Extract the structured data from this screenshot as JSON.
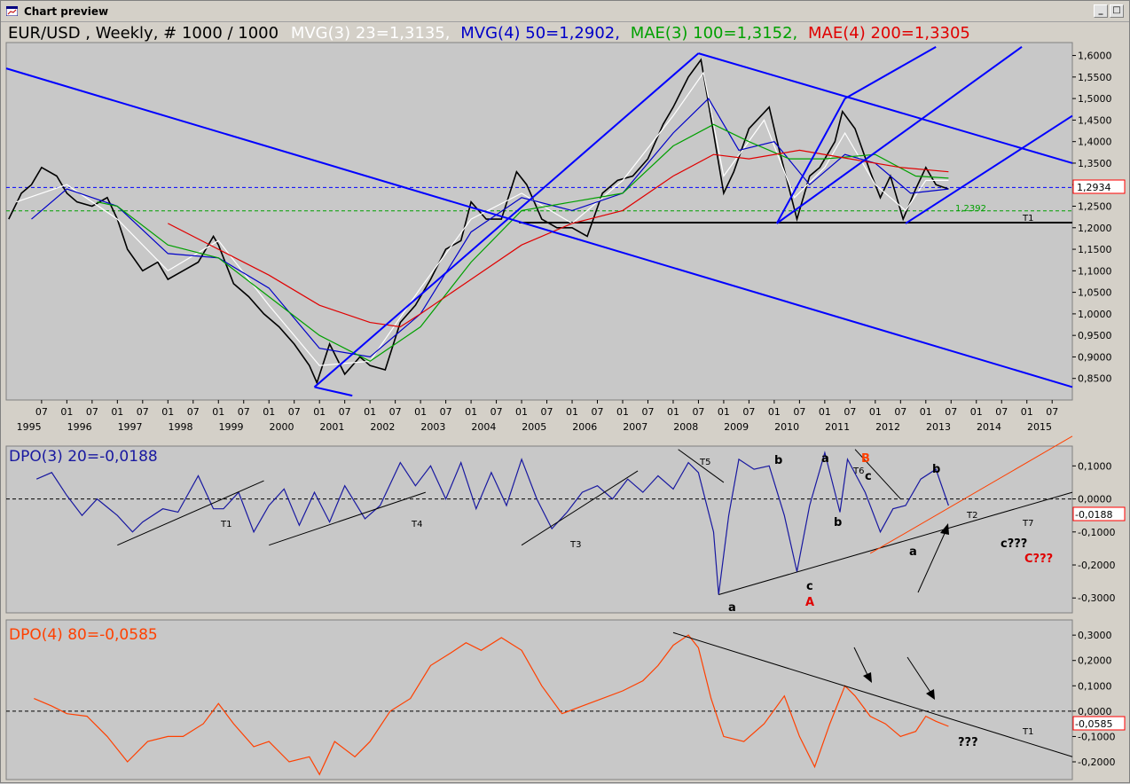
{
  "window": {
    "title": "Chart preview",
    "icon": "chart-icon",
    "min_label": "_",
    "max_label": "□"
  },
  "colors": {
    "background": "#c8c8c8",
    "price": "#000000",
    "mvg3": "#ffffff",
    "mvg4": "#0000c8",
    "mae3": "#00a000",
    "mae4": "#e00000",
    "dpo3": "#1818a0",
    "dpo4": "#ff4000",
    "trend": "#0000ff"
  },
  "header": {
    "symbol": "EUR/USD , Weekly, # 1000 / 1000",
    "mvg3": "MVG(3) 23=1,3135,",
    "mvg4": "MVG(4) 50=1,2902,",
    "mae3": "MAE(3) 100=1,3152,",
    "mae4": "MAE(4) 200=1,3305"
  },
  "price_panel": {
    "last_value_label": "1,2934",
    "level_label": "1,2392",
    "support_label": "T1"
  },
  "dpo3_panel": {
    "title": "DPO(3) 20=-0,0188",
    "last_value_label": "-0,0188",
    "annotations": {
      "T1": "T1",
      "T2": "T2",
      "T3": "T3",
      "T4": "T4",
      "T5": "T5",
      "T6": "T6",
      "T7": "T7",
      "a1": "a",
      "b1": "b",
      "a2": "a",
      "c1": "c",
      "A": "A",
      "b2": "b",
      "B": "B",
      "c2": "c",
      "a3": "a",
      "b3": "b",
      "c3": "c???",
      "C": "C???"
    }
  },
  "dpo4_panel": {
    "title": "DPO(4) 80=-0,0585",
    "last_value_label": "-0,0585",
    "annotations": {
      "T1": "T1",
      "q": "???"
    }
  },
  "chart_data": [
    {
      "type": "line",
      "title": "EUR/USD , Weekly, # 1000 / 1000",
      "x_axis": {
        "month_ticks": [
          "07",
          "01",
          "07",
          "01",
          "07",
          "01",
          "07",
          "01",
          "07",
          "01",
          "07",
          "01",
          "07",
          "01",
          "07",
          "01",
          "07",
          "01",
          "07",
          "01",
          "07",
          "01",
          "07",
          "01",
          "07",
          "01",
          "07",
          "01",
          "07",
          "01",
          "07",
          "01",
          "07",
          "01",
          "07",
          "01",
          "07",
          "01",
          "07",
          "01",
          "07"
        ],
        "years": [
          "1995",
          "1996",
          "1997",
          "1998",
          "1999",
          "2000",
          "2001",
          "2002",
          "2003",
          "2004",
          "2005",
          "2006",
          "2007",
          "2008",
          "2009",
          "2010",
          "2011",
          "2012",
          "2013",
          "2014",
          "2015"
        ],
        "range": [
          1994.8,
          2015.9
        ]
      },
      "y_axis": {
        "ticks": [
          "1,6000",
          "1,5500",
          "1,5000",
          "1,4500",
          "1,4000",
          "1,3500",
          "1,3000",
          "1,2500",
          "1,2000",
          "1,1500",
          "1,1000",
          "1,0500",
          "1,0000",
          "0,9500",
          "0,9000",
          "0,8500"
        ],
        "range": [
          0.8,
          1.63
        ]
      },
      "series": [
        {
          "name": "EUR/USD",
          "x": [
            1994.85,
            1995.1,
            1995.3,
            1995.5,
            1995.8,
            1996.0,
            1996.2,
            1996.5,
            1996.8,
            1997.0,
            1997.2,
            1997.5,
            1997.8,
            1998.0,
            1998.3,
            1998.6,
            1998.9,
            1999.0,
            1999.3,
            1999.6,
            1999.9,
            2000.2,
            2000.5,
            2000.8,
            2000.95,
            2001.2,
            2001.5,
            2001.8,
            2002.0,
            2002.3,
            2002.6,
            2002.9,
            2003.2,
            2003.5,
            2003.8,
            2004.0,
            2004.3,
            2004.6,
            2004.9,
            2005.1,
            2005.4,
            2005.7,
            2006.0,
            2006.3,
            2006.6,
            2006.9,
            2007.2,
            2007.5,
            2007.8,
            2008.0,
            2008.3,
            2008.55,
            2008.8,
            2009.0,
            2009.2,
            2009.5,
            2009.9,
            2010.1,
            2010.45,
            2010.7,
            2010.9,
            2011.2,
            2011.35,
            2011.6,
            2011.9,
            2012.1,
            2012.3,
            2012.55,
            2012.8,
            2013.0,
            2013.2,
            2013.45
          ],
          "y": [
            1.22,
            1.28,
            1.3,
            1.34,
            1.32,
            1.28,
            1.26,
            1.25,
            1.27,
            1.22,
            1.15,
            1.1,
            1.12,
            1.08,
            1.1,
            1.12,
            1.18,
            1.16,
            1.07,
            1.04,
            1.0,
            0.97,
            0.93,
            0.88,
            0.84,
            0.93,
            0.86,
            0.9,
            0.88,
            0.87,
            0.98,
            1.02,
            1.08,
            1.15,
            1.17,
            1.26,
            1.22,
            1.22,
            1.33,
            1.3,
            1.22,
            1.2,
            1.2,
            1.18,
            1.28,
            1.31,
            1.32,
            1.36,
            1.44,
            1.48,
            1.55,
            1.59,
            1.42,
            1.28,
            1.33,
            1.43,
            1.48,
            1.38,
            1.22,
            1.32,
            1.34,
            1.4,
            1.47,
            1.43,
            1.33,
            1.27,
            1.32,
            1.22,
            1.29,
            1.34,
            1.3,
            1.29
          ]
        },
        {
          "name": "MVG(3) 23",
          "x": [
            1995.0,
            1996.0,
            1997.0,
            1998.0,
            1999.0,
            2000.0,
            2001.0,
            2002.0,
            2003.0,
            2004.0,
            2005.0,
            2006.0,
            2007.0,
            2008.0,
            2008.6,
            2009.0,
            2009.8,
            2010.4,
            2011.0,
            2011.4,
            2012.0,
            2012.6,
            2013.0,
            2013.45
          ],
          "y": [
            1.26,
            1.3,
            1.22,
            1.1,
            1.17,
            1.02,
            0.88,
            0.89,
            1.06,
            1.22,
            1.28,
            1.21,
            1.31,
            1.46,
            1.56,
            1.32,
            1.45,
            1.27,
            1.34,
            1.42,
            1.3,
            1.24,
            1.31,
            1.31
          ]
        },
        {
          "name": "MVG(4) 50",
          "x": [
            1995.3,
            1996.0,
            1997.0,
            1998.0,
            1999.0,
            2000.0,
            2001.0,
            2002.0,
            2003.0,
            2004.0,
            2005.0,
            2006.0,
            2007.0,
            2008.0,
            2008.7,
            2009.3,
            2010.0,
            2010.7,
            2011.4,
            2012.0,
            2012.7,
            2013.45
          ],
          "y": [
            1.22,
            1.29,
            1.25,
            1.14,
            1.13,
            1.06,
            0.92,
            0.9,
            1.0,
            1.19,
            1.27,
            1.24,
            1.28,
            1.42,
            1.5,
            1.38,
            1.4,
            1.3,
            1.37,
            1.35,
            1.28,
            1.29
          ]
        },
        {
          "name": "MAE(3) 100",
          "x": [
            1996.6,
            1997.0,
            1998.0,
            1999.0,
            2000.0,
            2001.0,
            2002.0,
            2003.0,
            2004.0,
            2005.0,
            2006.0,
            2007.0,
            2008.0,
            2008.8,
            2009.5,
            2010.3,
            2011.0,
            2012.0,
            2012.8,
            2013.45
          ],
          "y": [
            1.26,
            1.25,
            1.16,
            1.13,
            1.04,
            0.95,
            0.89,
            0.97,
            1.12,
            1.24,
            1.26,
            1.28,
            1.39,
            1.44,
            1.4,
            1.36,
            1.36,
            1.37,
            1.32,
            1.315
          ]
        },
        {
          "name": "MAE(4) 200",
          "x": [
            1998.0,
            1999.0,
            2000.0,
            2001.0,
            2002.0,
            2002.6,
            2003.0,
            2004.0,
            2005.0,
            2006.0,
            2007.0,
            2008.0,
            2008.8,
            2009.5,
            2010.5,
            2011.5,
            2012.5,
            2013.45
          ],
          "y": [
            1.21,
            1.15,
            1.09,
            1.02,
            0.98,
            0.97,
            1.0,
            1.08,
            1.16,
            1.21,
            1.24,
            1.32,
            1.37,
            1.36,
            1.38,
            1.36,
            1.34,
            1.33
          ]
        }
      ],
      "reference_lines": [
        {
          "label": "1,2934",
          "y": 1.2934,
          "style": "dashed",
          "color": "#0000ff"
        },
        {
          "label": "1,2392",
          "y": 1.2392,
          "style": "dashed",
          "color": "#00a000"
        },
        {
          "label": "T1",
          "y": 1.212,
          "from": 2004.95,
          "style": "solid",
          "color": "#000000"
        }
      ],
      "trend_lines": [
        {
          "from": [
            1994.8,
            1.57
          ],
          "to": [
            2015.9,
            0.83
          ]
        },
        {
          "from": [
            2000.9,
            0.83
          ],
          "to": [
            2008.5,
            1.605
          ]
        },
        {
          "from": [
            2000.9,
            0.83
          ],
          "to": [
            2001.65,
            0.81
          ]
        },
        {
          "from": [
            2008.5,
            1.605
          ],
          "to": [
            2015.9,
            1.35
          ]
        },
        {
          "from": [
            2010.05,
            1.21
          ],
          "to": [
            2011.4,
            1.5
          ]
        },
        {
          "from": [
            2011.4,
            1.5
          ],
          "to": [
            2013.2,
            1.62
          ]
        },
        {
          "from": [
            2010.05,
            1.21
          ],
          "to": [
            2014.9,
            1.62
          ]
        },
        {
          "from": [
            2012.6,
            1.21
          ],
          "to": [
            2015.9,
            1.46
          ]
        }
      ]
    },
    {
      "type": "line",
      "title": "DPO(3) 20=-0,0188",
      "y_axis": {
        "ticks": [
          "0,1000",
          "0,0000",
          "-0,1000",
          "-0,2000",
          "-0,3000"
        ],
        "range": [
          -0.345,
          0.16
        ]
      },
      "series": [
        {
          "name": "DPO(3) 20",
          "x": [
            1995.4,
            1995.7,
            1996.0,
            1996.3,
            1996.6,
            1997.0,
            1997.3,
            1997.5,
            1997.9,
            1998.2,
            1998.6,
            1998.9,
            1999.1,
            1999.4,
            1999.7,
            2000.0,
            2000.3,
            2000.6,
            2000.9,
            2001.2,
            2001.5,
            2001.9,
            2002.2,
            2002.6,
            2002.9,
            2003.2,
            2003.5,
            2003.8,
            2004.1,
            2004.4,
            2004.7,
            2005.0,
            2005.3,
            2005.6,
            2005.9,
            2006.2,
            2006.5,
            2006.8,
            2007.1,
            2007.4,
            2007.7,
            2008.0,
            2008.3,
            2008.5,
            2008.8,
            2008.9,
            2009.1,
            2009.3,
            2009.6,
            2009.9,
            2010.2,
            2010.45,
            2010.7,
            2011.0,
            2011.3,
            2011.45,
            2011.8,
            2012.1,
            2012.35,
            2012.6,
            2012.9,
            2013.2,
            2013.45
          ],
          "y": [
            0.06,
            0.08,
            0.01,
            -0.05,
            0.0,
            -0.05,
            -0.1,
            -0.07,
            -0.03,
            -0.04,
            0.07,
            -0.03,
            -0.03,
            0.02,
            -0.1,
            -0.02,
            0.03,
            -0.08,
            0.02,
            -0.07,
            0.04,
            -0.06,
            -0.02,
            0.11,
            0.04,
            0.1,
            0.0,
            0.11,
            -0.03,
            0.08,
            -0.02,
            0.12,
            0.0,
            -0.09,
            -0.04,
            0.02,
            0.04,
            0.0,
            0.06,
            0.02,
            0.07,
            0.03,
            0.11,
            0.08,
            -0.1,
            -0.29,
            -0.05,
            0.12,
            0.09,
            0.1,
            -0.05,
            -0.22,
            -0.02,
            0.14,
            -0.04,
            0.12,
            0.02,
            -0.1,
            -0.03,
            -0.02,
            0.06,
            0.09,
            -0.02
          ]
        }
      ],
      "reference_lines": [
        {
          "label": "0,0000",
          "y": 0.0,
          "style": "dashed"
        }
      ],
      "trend_lines": [
        {
          "label": "T1",
          "from": [
            1997.0,
            -0.14
          ],
          "to": [
            1999.9,
            0.055
          ],
          "color": "#000000"
        },
        {
          "label": "T4",
          "from": [
            2000.0,
            -0.14
          ],
          "to": [
            2003.1,
            0.02
          ],
          "color": "#000000"
        },
        {
          "label": "T3",
          "from": [
            2005.0,
            -0.14
          ],
          "to": [
            2007.3,
            0.085
          ],
          "color": "#000000"
        },
        {
          "label": "T5",
          "from": [
            2008.1,
            0.15
          ],
          "to": [
            2009.0,
            0.05
          ],
          "color": "#000000"
        },
        {
          "label": "T6",
          "from": [
            2011.6,
            0.15
          ],
          "to": [
            2012.5,
            0.0
          ],
          "color": "#000000"
        },
        {
          "label": "T7",
          "from": [
            2008.9,
            -0.29
          ],
          "to": [
            2015.9,
            0.02
          ],
          "color": "#000000"
        },
        {
          "label": "T2",
          "from": [
            2011.9,
            -0.165
          ],
          "to": [
            2015.9,
            0.19
          ],
          "color": "#ff4000"
        }
      ]
    },
    {
      "type": "line",
      "title": "DPO(4) 80=-0,0585",
      "y_axis": {
        "ticks": [
          "0,3000",
          "0,2000",
          "0,1000",
          "0,0000",
          "-0,1000",
          "-0,2000"
        ],
        "range": [
          -0.27,
          0.36
        ]
      },
      "series": [
        {
          "name": "DPO(4) 80",
          "x": [
            1995.35,
            1995.7,
            1996.0,
            1996.4,
            1996.8,
            1997.2,
            1997.6,
            1998.0,
            1998.3,
            1998.7,
            1999.0,
            1999.3,
            1999.7,
            2000.0,
            2000.4,
            2000.8,
            2001.0,
            2001.3,
            2001.7,
            2002.0,
            2002.4,
            2002.8,
            2003.2,
            2003.6,
            2003.9,
            2004.2,
            2004.6,
            2005.0,
            2005.4,
            2005.8,
            2006.2,
            2006.6,
            2007.0,
            2007.4,
            2007.7,
            2008.0,
            2008.3,
            2008.5,
            2008.75,
            2009.0,
            2009.4,
            2009.8,
            2010.2,
            2010.5,
            2010.8,
            2011.1,
            2011.4,
            2011.6,
            2011.9,
            2012.2,
            2012.5,
            2012.8,
            2013.0,
            2013.2,
            2013.45
          ],
          "y": [
            0.05,
            0.02,
            -0.01,
            -0.02,
            -0.1,
            -0.2,
            -0.12,
            -0.1,
            -0.1,
            -0.05,
            0.03,
            -0.05,
            -0.14,
            -0.12,
            -0.2,
            -0.18,
            -0.25,
            -0.12,
            -0.18,
            -0.12,
            0.0,
            0.05,
            0.18,
            0.23,
            0.27,
            0.24,
            0.29,
            0.24,
            0.1,
            -0.01,
            0.02,
            0.05,
            0.08,
            0.12,
            0.18,
            0.26,
            0.3,
            0.25,
            0.05,
            -0.1,
            -0.12,
            -0.05,
            0.06,
            -0.1,
            -0.22,
            -0.05,
            0.1,
            0.06,
            -0.02,
            -0.05,
            -0.1,
            -0.08,
            -0.02,
            -0.04,
            -0.06
          ]
        }
      ],
      "reference_lines": [
        {
          "label": "0,0000",
          "y": 0.0,
          "style": "dashed"
        }
      ],
      "trend_lines": [
        {
          "label": "T1",
          "from": [
            2008.0,
            0.31
          ],
          "to": [
            2015.9,
            -0.18
          ],
          "color": "#000000"
        }
      ]
    }
  ]
}
